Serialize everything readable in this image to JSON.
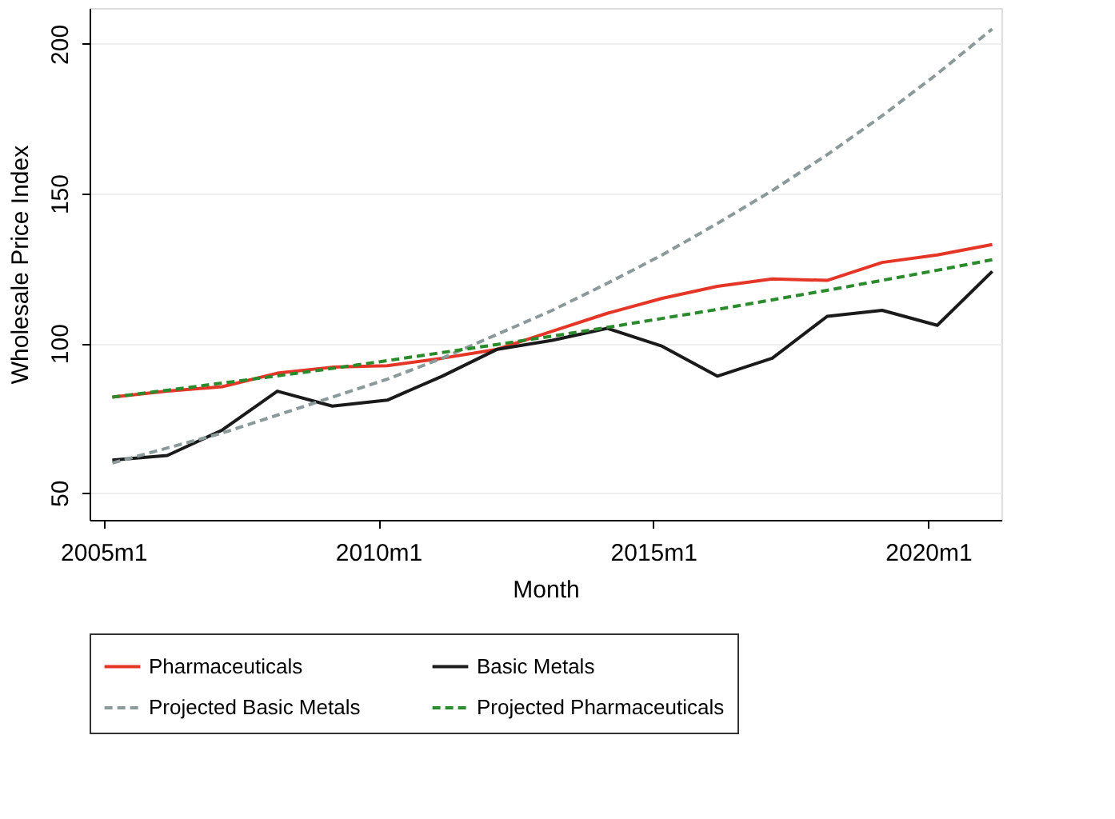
{
  "chart_data": {
    "type": "line",
    "xlabel": "Month",
    "ylabel": "Wholesale Price Index",
    "x": [
      "2005-03",
      "2006-03",
      "2007-03",
      "2008-03",
      "2009-03",
      "2010-03",
      "2011-03",
      "2012-03",
      "2013-03",
      "2014-03",
      "2015-03",
      "2016-03",
      "2017-03",
      "2018-03",
      "2019-03",
      "2020-03",
      "2021-03"
    ],
    "series": [
      {
        "name": "Pharmaceuticals",
        "color": "#e53527",
        "line_style": "solid",
        "values": [
          82,
          84,
          85.5,
          90,
          92,
          92.5,
          95,
          98,
          104,
          110,
          115,
          119,
          121.5,
          121,
          127,
          129.5,
          133
        ]
      },
      {
        "name": "Basic Metals",
        "color": "#1a1a1a",
        "line_style": "solid",
        "values": [
          61,
          62.5,
          71,
          84,
          79,
          81,
          89,
          98,
          101,
          105,
          99,
          89,
          95,
          109,
          111,
          106,
          124
        ]
      },
      {
        "name": "Projected Basic Metals",
        "color": "#8a9a9a",
        "line_style": "dashed",
        "values": [
          60,
          65,
          70,
          76,
          82,
          88,
          95,
          103,
          111,
          120,
          129.5,
          140,
          151,
          163,
          176,
          190,
          205
        ]
      },
      {
        "name": "Projected Pharmaceuticals",
        "color": "#2b8a2b",
        "line_style": "dashed",
        "values": [
          82,
          84.3,
          86.7,
          89.1,
          91.6,
          94.2,
          96.9,
          99.6,
          102.4,
          105.3,
          108.3,
          111.3,
          114.5,
          117.7,
          121,
          124.4,
          127.9
        ]
      }
    ],
    "xlim": [
      "2004-10",
      "2021-05"
    ],
    "ylim": [
      41,
      212
    ],
    "xticks": [
      {
        "value": "2005-01",
        "label": "2005m1"
      },
      {
        "value": "2010-01",
        "label": "2010m1"
      },
      {
        "value": "2015-01",
        "label": "2015m1"
      },
      {
        "value": "2020-01",
        "label": "2020m1"
      }
    ],
    "yticks": [
      50,
      100,
      150,
      200
    ],
    "grid": "y",
    "legend": "bottom",
    "marker": "none"
  }
}
